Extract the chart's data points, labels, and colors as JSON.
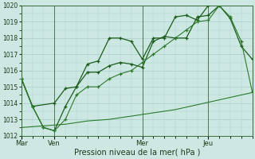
{
  "bg_color": "#cde8e2",
  "grid_color": "#aacccc",
  "line_color_dark": "#1a5c1a",
  "line_color_med": "#2d7a2d",
  "series1_x": [
    0,
    0.5,
    1.5,
    2,
    2.5,
    3,
    3.5,
    4,
    4.5,
    5,
    5.5,
    6,
    6.5,
    7,
    7.5,
    8,
    8.5
  ],
  "series1_y": [
    1015.5,
    1013.8,
    1014.0,
    1014.9,
    1015.0,
    1016.4,
    1016.6,
    1018.0,
    1018.0,
    1017.8,
    1016.7,
    1018.0,
    1018.0,
    1019.3,
    1019.4,
    1019.1,
    1020.0
  ],
  "series2_x": [
    0,
    0.5,
    1.0,
    1.5,
    2.0,
    2.5,
    3.0,
    3.5,
    4.0,
    4.5,
    5.0,
    5.5,
    6.0,
    6.5,
    7.0,
    7.5,
    8.0,
    8.5,
    9.0,
    9.5,
    10.0,
    10.5
  ],
  "series2_y": [
    1015.5,
    1013.8,
    1012.5,
    1012.3,
    1013.8,
    1015.0,
    1015.9,
    1015.9,
    1016.3,
    1016.5,
    1016.4,
    1016.2,
    1017.8,
    1018.1,
    1018.0,
    1018.0,
    1019.3,
    1019.4,
    1020.0,
    1019.2,
    1017.5,
    1016.7
  ],
  "series3_x": [
    0,
    0.5,
    1.0,
    1.5,
    2.0,
    2.5,
    3.0,
    3.5,
    4.0,
    4.5,
    5.0,
    5.5,
    6.0,
    6.5,
    7.0,
    7.5,
    8.0,
    8.5,
    9.0,
    9.5,
    10.0,
    10.5
  ],
  "series3_y": [
    1015.5,
    1013.8,
    1012.5,
    1012.3,
    1013.0,
    1014.5,
    1015.0,
    1015.0,
    1015.5,
    1015.8,
    1016.0,
    1016.5,
    1017.0,
    1017.5,
    1018.0,
    1018.5,
    1019.0,
    1019.1,
    1020.0,
    1019.3,
    1017.8,
    1014.7
  ],
  "series4_x": [
    0,
    1.0,
    2.0,
    3.0,
    4.0,
    5.0,
    6.0,
    7.0,
    8.0,
    9.0,
    10.0,
    10.5
  ],
  "series4_y": [
    1012.5,
    1012.6,
    1012.7,
    1012.9,
    1013.0,
    1013.2,
    1013.4,
    1013.6,
    1013.9,
    1014.2,
    1014.5,
    1014.65
  ],
  "xlim": [
    0,
    10.5
  ],
  "ylim": [
    1012,
    1020
  ],
  "yticks": [
    1012,
    1013,
    1014,
    1015,
    1016,
    1017,
    1018,
    1019,
    1020
  ],
  "vline_x": [
    0,
    1.5,
    5.5,
    8.5
  ],
  "xtick_positions": [
    0,
    1.5,
    5.5,
    8.5
  ],
  "xtick_labels": [
    "Mar",
    "Ven",
    "Mer",
    "Jeu"
  ],
  "xlabel": "Pression niveau de la mer( hPa )"
}
